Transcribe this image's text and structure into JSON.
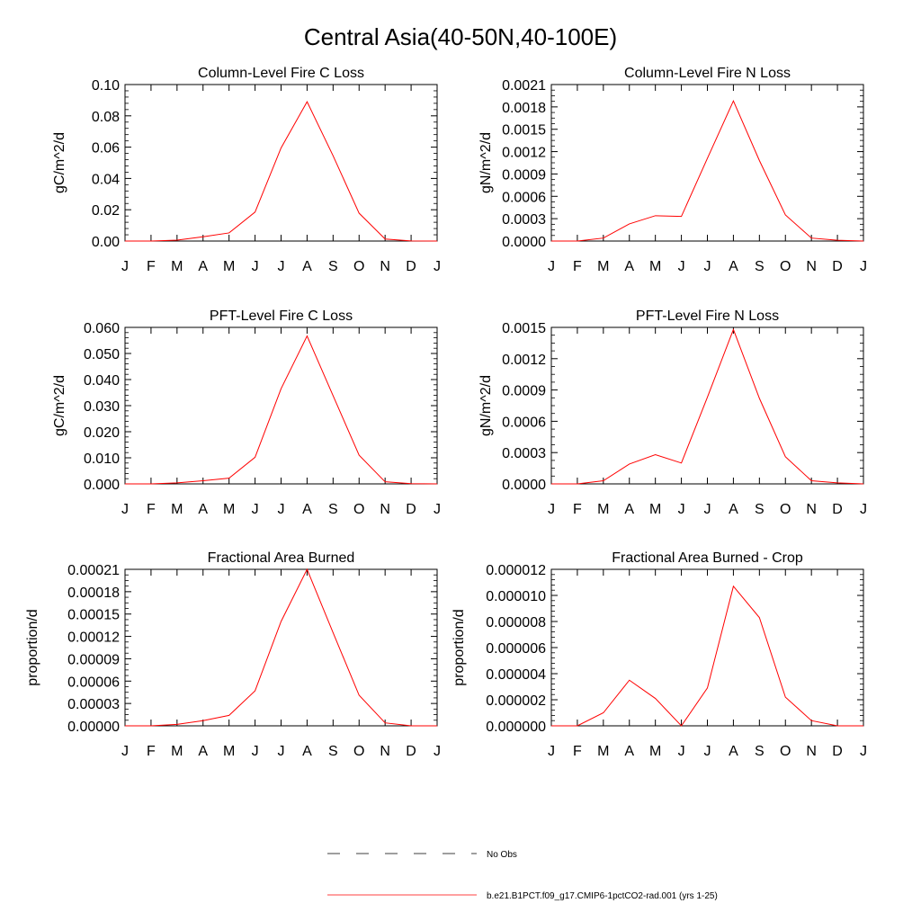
{
  "page_title": "Central Asia(40-50N,40-100E)",
  "legend": {
    "obs_label": "No Obs",
    "model_label": "b.e21.B1PCT.f09_g17.CMIP6-1pctCO2-rad.001 (yrs 1-25)",
    "obs_style": "dashed",
    "model_color": "#ff0000"
  },
  "colors": {
    "series": "#ff0000",
    "axes": "#000000"
  },
  "chart_data": [
    {
      "type": "line",
      "title": "Column-Level Fire C Loss",
      "ylabel": "gC/m^2/d",
      "xlabel": "",
      "categories": [
        "J",
        "F",
        "M",
        "A",
        "M",
        "J",
        "J",
        "A",
        "S",
        "O",
        "N",
        "D",
        "J"
      ],
      "ylim": [
        0,
        0.1
      ],
      "yticks": [
        "0.00",
        "0.02",
        "0.04",
        "0.06",
        "0.08",
        "0.10"
      ],
      "yminor_per_major": 4,
      "series": [
        {
          "values": [
            0.0,
            0.0,
            0.0006,
            0.0027,
            0.0052,
            0.0185,
            0.0595,
            0.089,
            0.0545,
            0.0178,
            0.0013,
            0.0001,
            0.0
          ]
        }
      ]
    },
    {
      "type": "line",
      "title": "Column-Level Fire N Loss",
      "ylabel": "gN/m^2/d",
      "xlabel": "",
      "categories": [
        "J",
        "F",
        "M",
        "A",
        "M",
        "J",
        "J",
        "A",
        "S",
        "O",
        "N",
        "D",
        "J"
      ],
      "ylim": [
        0,
        0.0021
      ],
      "yticks": [
        "0.0000",
        "0.0003",
        "0.0006",
        "0.0009",
        "0.0012",
        "0.0015",
        "0.0018",
        "0.0021"
      ],
      "yminor_per_major": 3,
      "series": [
        {
          "values": [
            0.0,
            0.0,
            4e-05,
            0.00023,
            0.00034,
            0.00033,
            0.00111,
            0.00188,
            0.00108,
            0.00035,
            4e-05,
            1e-05,
            0.0
          ]
        }
      ]
    },
    {
      "type": "line",
      "title": "PFT-Level Fire C Loss",
      "ylabel": "gC/m^2/d",
      "xlabel": "",
      "categories": [
        "J",
        "F",
        "M",
        "A",
        "M",
        "J",
        "J",
        "A",
        "S",
        "O",
        "N",
        "D",
        "J"
      ],
      "ylim": [
        0,
        0.06
      ],
      "yticks": [
        "0.000",
        "0.010",
        "0.020",
        "0.030",
        "0.040",
        "0.050",
        "0.060"
      ],
      "yminor_per_major": 4,
      "series": [
        {
          "values": [
            0.0,
            0.0,
            0.0004,
            0.0012,
            0.0022,
            0.0102,
            0.0365,
            0.0567,
            0.0338,
            0.011,
            0.0008,
            0.0001,
            0.0
          ]
        }
      ]
    },
    {
      "type": "line",
      "title": "PFT-Level Fire N Loss",
      "ylabel": "gN/m^2/d",
      "xlabel": "",
      "categories": [
        "J",
        "F",
        "M",
        "A",
        "M",
        "J",
        "J",
        "A",
        "S",
        "O",
        "N",
        "D",
        "J"
      ],
      "ylim": [
        0,
        0.0015
      ],
      "yticks": [
        "0.0000",
        "0.0003",
        "0.0006",
        "0.0009",
        "0.0012",
        "0.0015"
      ],
      "yminor_per_major": 3,
      "series": [
        {
          "values": [
            0.0,
            0.0,
            3e-05,
            0.00019,
            0.00028,
            0.0002,
            0.00083,
            0.00148,
            0.00082,
            0.00026,
            3e-05,
            1e-05,
            0.0
          ]
        }
      ]
    },
    {
      "type": "line",
      "title": "Fractional Area Burned",
      "ylabel": "proportion/d",
      "xlabel": "",
      "categories": [
        "J",
        "F",
        "M",
        "A",
        "M",
        "J",
        "J",
        "A",
        "S",
        "O",
        "N",
        "D",
        "J"
      ],
      "ylim": [
        0,
        0.00021
      ],
      "yticks": [
        "0.00000",
        "0.00003",
        "0.00006",
        "0.00009",
        "0.00012",
        "0.00015",
        "0.00018",
        "0.00021"
      ],
      "yminor_per_major": 3,
      "series": [
        {
          "values": [
            0.0,
            0.0,
            2e-06,
            7e-06,
            1.4e-05,
            4.7e-05,
            0.00014,
            0.00021,
            0.000125,
            4.1e-05,
            4e-06,
            0.0,
            0.0
          ]
        }
      ]
    },
    {
      "type": "line",
      "title": "Fractional Area Burned - Crop",
      "ylabel": "proportion/d",
      "xlabel": "",
      "categories": [
        "J",
        "F",
        "M",
        "A",
        "M",
        "J",
        "J",
        "A",
        "S",
        "O",
        "N",
        "D",
        "J"
      ],
      "ylim": [
        0,
        1.2e-05
      ],
      "yticks": [
        "0.000000",
        "0.000002",
        "0.000004",
        "0.000006",
        "0.000008",
        "0.000010",
        "0.000012"
      ],
      "yminor_per_major": 4,
      "series": [
        {
          "values": [
            0.0,
            0.0,
            1e-06,
            3.5e-06,
            2.1e-06,
            0.0,
            2.9e-06,
            1.07e-05,
            8.3e-06,
            2.2e-06,
            4e-07,
            0.0,
            0.0
          ]
        }
      ]
    }
  ]
}
